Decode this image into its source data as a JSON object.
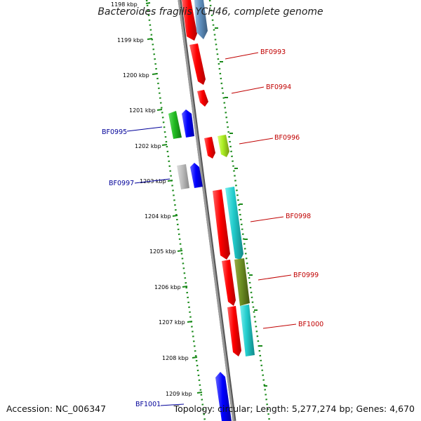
{
  "title": "Bacteroides fragilis YCH46, complete genome",
  "accession": "Accession: NC_006347",
  "summary": "Topology: circular; Length: 5,277,274 bp; Genes: 4,670",
  "ticks": [
    "1198 kbp",
    "1199 kbp",
    "1200 kbp",
    "1201 kbp",
    "1202 kbp",
    "1203 kbp",
    "1204 kbp",
    "1205 kbp",
    "1206 kbp",
    "1207 kbp",
    "1208 kbp",
    "1209 kbp"
  ],
  "colors": {
    "forward_label": "#c00000",
    "reverse_label": "#000099",
    "axis": "#888888",
    "dots": "#1a8a1a"
  },
  "gene_labels": [
    {
      "name": "BF0993",
      "side": "right"
    },
    {
      "name": "BF0994",
      "side": "right"
    },
    {
      "name": "BF0995",
      "side": "left"
    },
    {
      "name": "BF0996",
      "side": "right"
    },
    {
      "name": "BF0997",
      "side": "left"
    },
    {
      "name": "BF0998",
      "side": "right"
    },
    {
      "name": "BF0999",
      "side": "right"
    },
    {
      "name": "BF1000",
      "side": "right"
    },
    {
      "name": "BF1001",
      "side": "left"
    }
  ]
}
